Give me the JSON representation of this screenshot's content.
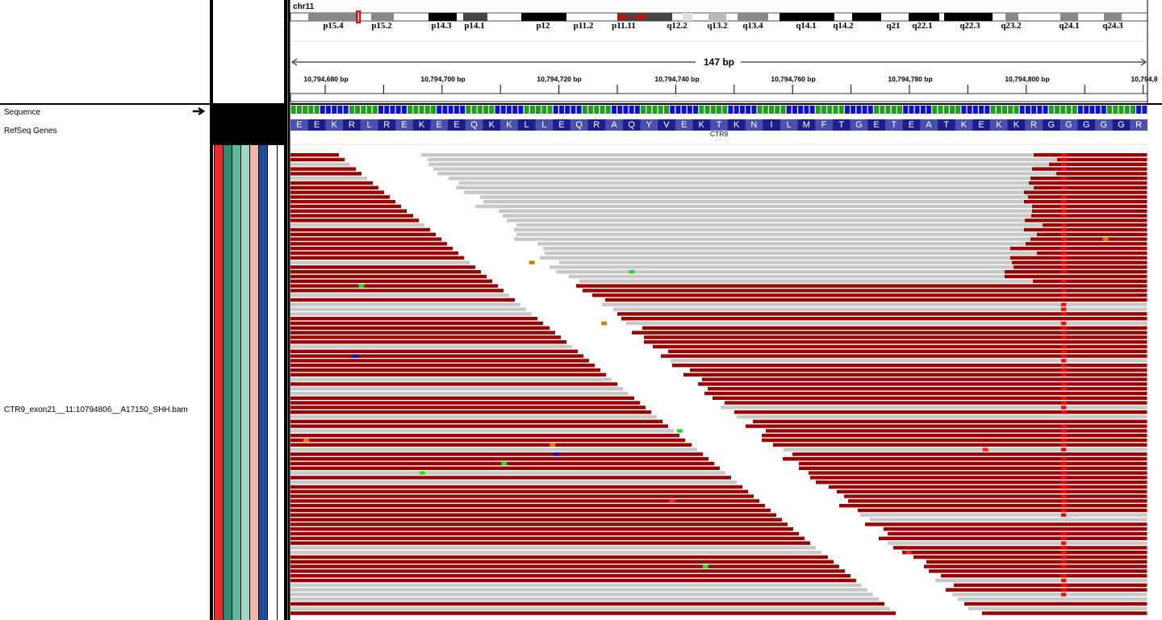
{
  "chromosome": "chr11",
  "ideogram_bands": [
    "p15.4",
    "p15.2",
    "p14.3",
    "p14.1",
    "p12",
    "p11.2",
    "p11.11",
    "q12.2",
    "q13.2",
    "q13.4",
    "q14.1",
    "q14.2",
    "q21",
    "q22.1",
    "q22.3",
    "q23.2",
    "q24.1",
    "q24.3"
  ],
  "span_label": "147 bp",
  "ruler_ticks": [
    "10,794,680 bp",
    "10,794,700 bp",
    "10,794,720 bp",
    "10,794,740 bp",
    "10,794,760 bp",
    "10,794,780 bp",
    "10,794,800 bp",
    "10,794,8"
  ],
  "tracks": {
    "sequence": "Sequence",
    "refseq": "RefSeq Genes",
    "bam": "CTR9_exon21__11:10794806__A17150_SHH.bam"
  },
  "amino_acids": [
    "E",
    "E",
    "K",
    "R",
    "L",
    "R",
    "E",
    "K",
    "E",
    "E",
    "Q",
    "K",
    "K",
    "L",
    "L",
    "E",
    "Q",
    "R",
    "A",
    "Q",
    "Y",
    "V",
    "E",
    "K",
    "T",
    "K",
    "N",
    "I",
    "L",
    "M",
    "F",
    "T",
    "G",
    "E",
    "T",
    "E",
    "A",
    "T",
    "K",
    "E",
    "K",
    "K",
    "R",
    "G",
    "G",
    "G",
    "G",
    "G",
    "R"
  ],
  "gene_name": "CTR9",
  "colors": {
    "read_forward": "#990000",
    "read_gray": "#c8c8c8",
    "mismatch_red": "#ff0000",
    "amino_dark": "#1b1e8c",
    "amino_light": "#4b4fb0",
    "attr_strips": [
      "#ee2a2a",
      "#2e8a72",
      "#5fb89f",
      "#9ed8c9",
      "#f4b2b0",
      "#1f4e9b",
      "#ffffff"
    ]
  }
}
